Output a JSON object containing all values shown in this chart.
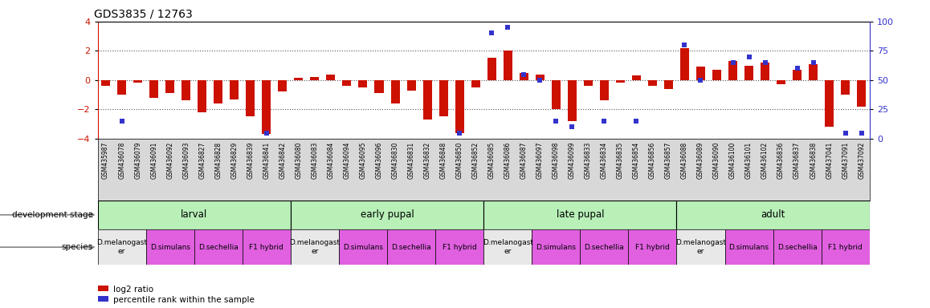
{
  "title": "GDS3835 / 12763",
  "samples": [
    "GSM435987",
    "GSM436078",
    "GSM436079",
    "GSM436091",
    "GSM436092",
    "GSM436093",
    "GSM436827",
    "GSM436828",
    "GSM436829",
    "GSM436839",
    "GSM436841",
    "GSM436842",
    "GSM436080",
    "GSM436083",
    "GSM436084",
    "GSM436094",
    "GSM436095",
    "GSM436096",
    "GSM436830",
    "GSM436831",
    "GSM436832",
    "GSM436848",
    "GSM436850",
    "GSM436852",
    "GSM436085",
    "GSM436086",
    "GSM436087",
    "GSM436097",
    "GSM436098",
    "GSM436099",
    "GSM436833",
    "GSM436834",
    "GSM436835",
    "GSM436854",
    "GSM436856",
    "GSM436857",
    "GSM436088",
    "GSM436089",
    "GSM436090",
    "GSM436100",
    "GSM436101",
    "GSM436102",
    "GSM436836",
    "GSM436837",
    "GSM436838",
    "GSM437041",
    "GSM437091",
    "GSM437092"
  ],
  "log2_ratio": [
    -0.4,
    -1.0,
    -0.2,
    -1.2,
    -0.9,
    -1.4,
    -2.2,
    -1.6,
    -1.3,
    -2.5,
    -3.7,
    -0.8,
    0.15,
    0.2,
    0.4,
    -0.4,
    -0.5,
    -0.9,
    -1.6,
    -0.7,
    -2.7,
    -2.5,
    -3.6,
    -0.5,
    1.5,
    2.0,
    0.5,
    0.4,
    -2.0,
    -2.8,
    -0.4,
    -1.4,
    -0.2,
    0.3,
    -0.4,
    -0.6,
    2.2,
    0.9,
    0.7,
    1.3,
    1.0,
    1.2,
    -0.3,
    0.7,
    1.1,
    -3.2,
    -1.0,
    -1.8
  ],
  "percentile": [
    null,
    15,
    null,
    null,
    null,
    null,
    null,
    null,
    null,
    null,
    5,
    null,
    null,
    null,
    null,
    null,
    null,
    null,
    null,
    null,
    null,
    null,
    5,
    null,
    90,
    95,
    55,
    50,
    15,
    10,
    null,
    15,
    null,
    15,
    null,
    null,
    80,
    50,
    null,
    65,
    70,
    65,
    null,
    60,
    65,
    null,
    5,
    5
  ],
  "stages": [
    {
      "label": "larval",
      "start": 0,
      "end": 12,
      "color": "#b8f0b8"
    },
    {
      "label": "early pupal",
      "start": 12,
      "end": 24,
      "color": "#b8f0b8"
    },
    {
      "label": "late pupal",
      "start": 24,
      "end": 36,
      "color": "#b8f0b8"
    },
    {
      "label": "adult",
      "start": 36,
      "end": 48,
      "color": "#b8f0b8"
    }
  ],
  "species_groups": [
    {
      "label": "D.melanogast\ner",
      "start": 0,
      "end": 3,
      "color": "#e8e8e8"
    },
    {
      "label": "D.simulans",
      "start": 3,
      "end": 6,
      "color": "#e060e0"
    },
    {
      "label": "D.sechellia",
      "start": 6,
      "end": 9,
      "color": "#e060e0"
    },
    {
      "label": "F1 hybrid",
      "start": 9,
      "end": 12,
      "color": "#e060e0"
    },
    {
      "label": "D.melanogast\ner",
      "start": 12,
      "end": 15,
      "color": "#e8e8e8"
    },
    {
      "label": "D.simulans",
      "start": 15,
      "end": 18,
      "color": "#e060e0"
    },
    {
      "label": "D.sechellia",
      "start": 18,
      "end": 21,
      "color": "#e060e0"
    },
    {
      "label": "F1 hybrid",
      "start": 21,
      "end": 24,
      "color": "#e060e0"
    },
    {
      "label": "D.melanogast\ner",
      "start": 24,
      "end": 27,
      "color": "#e8e8e8"
    },
    {
      "label": "D.simulans",
      "start": 27,
      "end": 30,
      "color": "#e060e0"
    },
    {
      "label": "D.sechellia",
      "start": 30,
      "end": 33,
      "color": "#e060e0"
    },
    {
      "label": "F1 hybrid",
      "start": 33,
      "end": 36,
      "color": "#e060e0"
    },
    {
      "label": "D.melanogast\ner",
      "start": 36,
      "end": 39,
      "color": "#e8e8e8"
    },
    {
      "label": "D.simulans",
      "start": 39,
      "end": 42,
      "color": "#e060e0"
    },
    {
      "label": "D.sechellia",
      "start": 42,
      "end": 45,
      "color": "#e060e0"
    },
    {
      "label": "F1 hybrid",
      "start": 45,
      "end": 48,
      "color": "#e060e0"
    }
  ],
  "ylim": [
    -4,
    4
  ],
  "yticks_left": [
    -4,
    -2,
    0,
    2,
    4
  ],
  "yticks_right": [
    0,
    25,
    50,
    75,
    100
  ],
  "bar_color": "#cc1100",
  "dot_color": "#3333cc",
  "background_color": "#ffffff",
  "dotted_line_color": "#555555",
  "axis_label_color": "#cc1100",
  "axis_right_color": "#3333cc",
  "sample_bg_color": "#d8d8d8",
  "legend_red_label": "log2 ratio",
  "legend_blue_label": "percentile rank within the sample"
}
